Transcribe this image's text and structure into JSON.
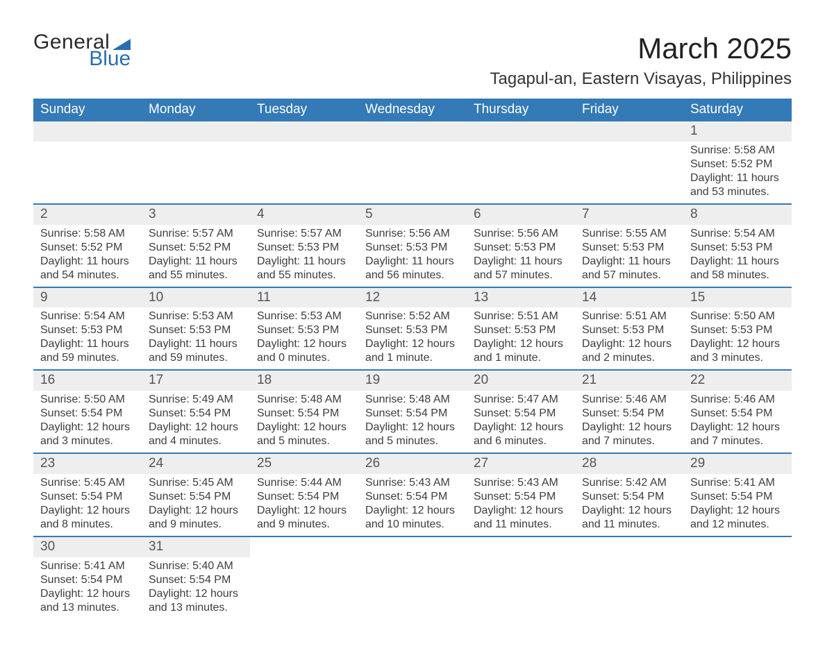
{
  "brand": {
    "word1": "General",
    "word2": "Blue",
    "accent_color": "#2a6db0"
  },
  "title": "March 2025",
  "location": "Tagapul-an, Eastern Visayas, Philippines",
  "colors": {
    "header_bg": "#337ab7",
    "header_text": "#ffffff",
    "daynum_bg": "#eeeeee",
    "row_border": "#337ab7",
    "body_text": "#3d3d3d",
    "page_bg": "#ffffff"
  },
  "typography": {
    "title_fontsize": 42,
    "location_fontsize": 24,
    "header_fontsize": 19,
    "cell_fontsize": 16,
    "font_family": "Arial"
  },
  "day_headers": [
    "Sunday",
    "Monday",
    "Tuesday",
    "Wednesday",
    "Thursday",
    "Friday",
    "Saturday"
  ],
  "labels": {
    "sunrise": "Sunrise:",
    "sunset": "Sunset:",
    "daylight": "Daylight:"
  },
  "weeks": [
    [
      null,
      null,
      null,
      null,
      null,
      null,
      {
        "n": "1",
        "sunrise": "5:58 AM",
        "sunset": "5:52 PM",
        "daylight": "11 hours and 53 minutes."
      }
    ],
    [
      {
        "n": "2",
        "sunrise": "5:58 AM",
        "sunset": "5:52 PM",
        "daylight": "11 hours and 54 minutes."
      },
      {
        "n": "3",
        "sunrise": "5:57 AM",
        "sunset": "5:52 PM",
        "daylight": "11 hours and 55 minutes."
      },
      {
        "n": "4",
        "sunrise": "5:57 AM",
        "sunset": "5:53 PM",
        "daylight": "11 hours and 55 minutes."
      },
      {
        "n": "5",
        "sunrise": "5:56 AM",
        "sunset": "5:53 PM",
        "daylight": "11 hours and 56 minutes."
      },
      {
        "n": "6",
        "sunrise": "5:56 AM",
        "sunset": "5:53 PM",
        "daylight": "11 hours and 57 minutes."
      },
      {
        "n": "7",
        "sunrise": "5:55 AM",
        "sunset": "5:53 PM",
        "daylight": "11 hours and 57 minutes."
      },
      {
        "n": "8",
        "sunrise": "5:54 AM",
        "sunset": "5:53 PM",
        "daylight": "11 hours and 58 minutes."
      }
    ],
    [
      {
        "n": "9",
        "sunrise": "5:54 AM",
        "sunset": "5:53 PM",
        "daylight": "11 hours and 59 minutes."
      },
      {
        "n": "10",
        "sunrise": "5:53 AM",
        "sunset": "5:53 PM",
        "daylight": "11 hours and 59 minutes."
      },
      {
        "n": "11",
        "sunrise": "5:53 AM",
        "sunset": "5:53 PM",
        "daylight": "12 hours and 0 minutes."
      },
      {
        "n": "12",
        "sunrise": "5:52 AM",
        "sunset": "5:53 PM",
        "daylight": "12 hours and 1 minute."
      },
      {
        "n": "13",
        "sunrise": "5:51 AM",
        "sunset": "5:53 PM",
        "daylight": "12 hours and 1 minute."
      },
      {
        "n": "14",
        "sunrise": "5:51 AM",
        "sunset": "5:53 PM",
        "daylight": "12 hours and 2 minutes."
      },
      {
        "n": "15",
        "sunrise": "5:50 AM",
        "sunset": "5:53 PM",
        "daylight": "12 hours and 3 minutes."
      }
    ],
    [
      {
        "n": "16",
        "sunrise": "5:50 AM",
        "sunset": "5:54 PM",
        "daylight": "12 hours and 3 minutes."
      },
      {
        "n": "17",
        "sunrise": "5:49 AM",
        "sunset": "5:54 PM",
        "daylight": "12 hours and 4 minutes."
      },
      {
        "n": "18",
        "sunrise": "5:48 AM",
        "sunset": "5:54 PM",
        "daylight": "12 hours and 5 minutes."
      },
      {
        "n": "19",
        "sunrise": "5:48 AM",
        "sunset": "5:54 PM",
        "daylight": "12 hours and 5 minutes."
      },
      {
        "n": "20",
        "sunrise": "5:47 AM",
        "sunset": "5:54 PM",
        "daylight": "12 hours and 6 minutes."
      },
      {
        "n": "21",
        "sunrise": "5:46 AM",
        "sunset": "5:54 PM",
        "daylight": "12 hours and 7 minutes."
      },
      {
        "n": "22",
        "sunrise": "5:46 AM",
        "sunset": "5:54 PM",
        "daylight": "12 hours and 7 minutes."
      }
    ],
    [
      {
        "n": "23",
        "sunrise": "5:45 AM",
        "sunset": "5:54 PM",
        "daylight": "12 hours and 8 minutes."
      },
      {
        "n": "24",
        "sunrise": "5:45 AM",
        "sunset": "5:54 PM",
        "daylight": "12 hours and 9 minutes."
      },
      {
        "n": "25",
        "sunrise": "5:44 AM",
        "sunset": "5:54 PM",
        "daylight": "12 hours and 9 minutes."
      },
      {
        "n": "26",
        "sunrise": "5:43 AM",
        "sunset": "5:54 PM",
        "daylight": "12 hours and 10 minutes."
      },
      {
        "n": "27",
        "sunrise": "5:43 AM",
        "sunset": "5:54 PM",
        "daylight": "12 hours and 11 minutes."
      },
      {
        "n": "28",
        "sunrise": "5:42 AM",
        "sunset": "5:54 PM",
        "daylight": "12 hours and 11 minutes."
      },
      {
        "n": "29",
        "sunrise": "5:41 AM",
        "sunset": "5:54 PM",
        "daylight": "12 hours and 12 minutes."
      }
    ],
    [
      {
        "n": "30",
        "sunrise": "5:41 AM",
        "sunset": "5:54 PM",
        "daylight": "12 hours and 13 minutes."
      },
      {
        "n": "31",
        "sunrise": "5:40 AM",
        "sunset": "5:54 PM",
        "daylight": "12 hours and 13 minutes."
      },
      null,
      null,
      null,
      null,
      null
    ]
  ]
}
